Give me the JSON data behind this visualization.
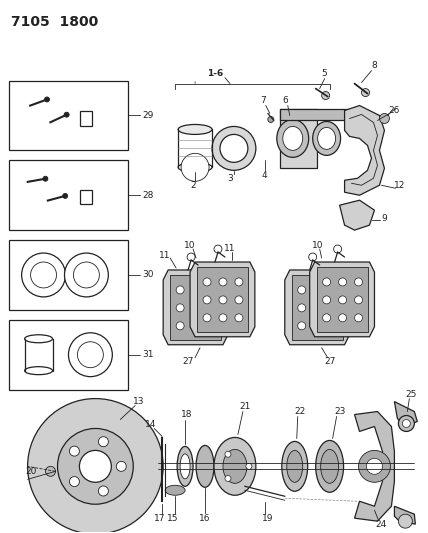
{
  "title": "7105  1800",
  "bg_color": "#ffffff",
  "lc": "#222222",
  "fig_width": 4.28,
  "fig_height": 5.33,
  "dpi": 100,
  "label_fs": 6.5,
  "title_fs": 10
}
